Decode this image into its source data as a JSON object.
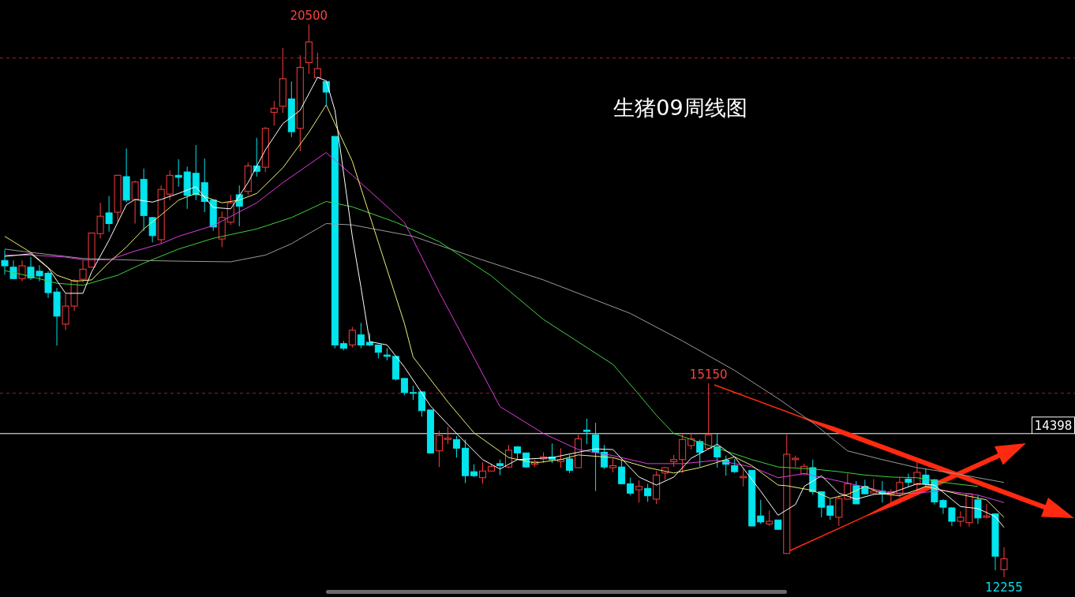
{
  "chart_data": {
    "type": "candlestick",
    "title": "生猪09周线图",
    "categories": [
      null,
      null,
      null,
      null,
      null,
      null,
      null,
      null,
      null,
      null,
      null,
      null,
      null,
      null,
      null,
      null,
      null,
      null,
      null,
      null,
      null,
      null,
      null,
      null,
      null,
      null,
      null,
      null,
      null,
      null,
      null,
      null,
      null,
      null,
      null,
      null,
      null,
      null,
      null,
      null,
      null,
      null,
      null,
      null,
      null,
      null,
      null,
      null,
      null,
      null,
      null,
      null,
      null,
      null,
      null,
      null,
      null,
      null,
      null,
      null,
      null,
      null,
      null,
      null,
      null,
      null,
      null,
      null,
      null,
      null,
      null,
      null,
      null,
      null,
      null,
      null,
      null,
      null,
      null,
      null,
      null,
      null,
      null,
      null,
      null,
      null,
      null,
      null,
      null,
      null,
      null,
      null,
      null,
      null,
      null,
      null,
      null,
      null,
      null,
      null,
      null,
      null,
      null,
      null,
      null,
      null,
      null,
      null,
      null,
      null,
      null,
      null,
      null,
      null,
      null,
      null
    ],
    "ohlc": [
      [
        16980,
        17140,
        16770,
        16900
      ],
      [
        16880,
        16980,
        16700,
        16710
      ],
      [
        16710,
        16980,
        16670,
        16900
      ],
      [
        16880,
        17030,
        16690,
        16720
      ],
      [
        16820,
        16910,
        16670,
        16750
      ],
      [
        16790,
        16820,
        16420,
        16500
      ],
      [
        16510,
        16570,
        15710,
        16150
      ],
      [
        16030,
        16480,
        15940,
        16300
      ],
      [
        16300,
        16700,
        16230,
        16680
      ],
      [
        16700,
        16980,
        16650,
        16850
      ],
      [
        16880,
        17390,
        16880,
        17390
      ],
      [
        17380,
        17840,
        17310,
        17640
      ],
      [
        17690,
        17940,
        17410,
        17530
      ],
      [
        17700,
        18260,
        17550,
        18250
      ],
      [
        18230,
        18650,
        17850,
        17880
      ],
      [
        17890,
        18170,
        17530,
        18150
      ],
      [
        18190,
        18350,
        17420,
        17650
      ],
      [
        17620,
        17630,
        17250,
        17350
      ],
      [
        17290,
        18100,
        17230,
        18040
      ],
      [
        17970,
        18320,
        17880,
        18250
      ],
      [
        18250,
        18490,
        18080,
        18220
      ],
      [
        18300,
        18380,
        17750,
        17950
      ],
      [
        18280,
        18700,
        17880,
        17960
      ],
      [
        18140,
        18500,
        17700,
        17860
      ],
      [
        17880,
        17880,
        17420,
        17480
      ],
      [
        17300,
        17710,
        17180,
        17620
      ],
      [
        17550,
        17960,
        17510,
        17840
      ],
      [
        17960,
        18100,
        17490,
        17790
      ],
      [
        18010,
        18440,
        17960,
        18390
      ],
      [
        18390,
        18810,
        18230,
        18310
      ],
      [
        18370,
        18970,
        18300,
        18950
      ],
      [
        19190,
        19360,
        18990,
        19250
      ],
      [
        19280,
        20150,
        19180,
        19690
      ],
      [
        19390,
        19650,
        18820,
        18900
      ],
      [
        18950,
        20040,
        18610,
        19860
      ],
      [
        19930,
        20500,
        19760,
        20240
      ],
      [
        19710,
        20080,
        19700,
        19840
      ],
      [
        19650,
        19650,
        19300,
        19490
      ],
      [
        18830,
        18830,
        15670,
        15720
      ],
      [
        15740,
        15780,
        15640,
        15670
      ],
      [
        15720,
        15990,
        15680,
        15940
      ],
      [
        15870,
        16050,
        15670,
        15720
      ],
      [
        15760,
        15900,
        15700,
        15720
      ],
      [
        15720,
        15720,
        15520,
        15610
      ],
      [
        15570,
        15670,
        15490,
        15550
      ],
      [
        15550,
        15550,
        15190,
        15210
      ],
      [
        15220,
        15230,
        14970,
        15010
      ],
      [
        15010,
        15110,
        14900,
        15000
      ],
      [
        15020,
        15020,
        14650,
        14740
      ],
      [
        14750,
        14750,
        14100,
        14110
      ],
      [
        14140,
        14440,
        13900,
        14370
      ],
      [
        14310,
        14500,
        14240,
        14330
      ],
      [
        14310,
        14360,
        14040,
        14180
      ],
      [
        14180,
        14310,
        13660,
        13770
      ],
      [
        13830,
        13940,
        13750,
        13770
      ],
      [
        13740,
        13970,
        13650,
        13840
      ],
      [
        13840,
        13940,
        13840,
        13910
      ],
      [
        13950,
        14010,
        13780,
        13920
      ],
      [
        13900,
        14230,
        13880,
        14150
      ],
      [
        14200,
        14210,
        14020,
        14110
      ],
      [
        14110,
        14110,
        13890,
        13900
      ],
      [
        13940,
        14010,
        13900,
        13980
      ],
      [
        14020,
        14120,
        13960,
        14050
      ],
      [
        14050,
        14250,
        13960,
        14010
      ],
      [
        13980,
        14180,
        13890,
        14010
      ],
      [
        14020,
        14080,
        13810,
        13850
      ],
      [
        13890,
        14380,
        13890,
        14320
      ],
      [
        14450,
        14620,
        14240,
        14430
      ],
      [
        14380,
        14560,
        13540,
        14120
      ],
      [
        14120,
        14230,
        13870,
        13900
      ],
      [
        13890,
        14030,
        13820,
        13920
      ],
      [
        13900,
        14010,
        13640,
        13650
      ],
      [
        13650,
        13740,
        13480,
        13510
      ],
      [
        13560,
        13700,
        13370,
        13610
      ],
      [
        13580,
        13650,
        13380,
        13470
      ],
      [
        13420,
        13840,
        13350,
        13780
      ],
      [
        13810,
        13900,
        13710,
        13890
      ],
      [
        13980,
        14080,
        13900,
        14010
      ],
      [
        14010,
        14400,
        13810,
        14310
      ],
      [
        14220,
        14410,
        14160,
        14320
      ],
      [
        14280,
        14310,
        13900,
        14120
      ],
      [
        14180,
        15150,
        14160,
        14380
      ],
      [
        14200,
        14400,
        13890,
        14050
      ],
      [
        14000,
        14070,
        13770,
        13940
      ],
      [
        13920,
        14020,
        13810,
        13830
      ],
      [
        13740,
        13870,
        13610,
        13760
      ],
      [
        13850,
        13850,
        13020,
        13020
      ],
      [
        13170,
        13410,
        13050,
        13080
      ],
      [
        13050,
        13250,
        13020,
        13090
      ],
      [
        13110,
        13110,
        12970,
        12970
      ],
      [
        12610,
        14380,
        12610,
        14090
      ],
      [
        14010,
        14070,
        13900,
        14030
      ],
      [
        13800,
        13950,
        13780,
        13910
      ],
      [
        13890,
        14010,
        13490,
        13530
      ],
      [
        13530,
        13530,
        13150,
        13300
      ],
      [
        13320,
        13420,
        13110,
        13180
      ],
      [
        13150,
        13480,
        13020,
        13430
      ],
      [
        13420,
        13800,
        13420,
        13650
      ],
      [
        13620,
        13690,
        13350,
        13350
      ],
      [
        13610,
        13710,
        13500,
        13500
      ],
      [
        13510,
        13720,
        13490,
        13540
      ],
      [
        13540,
        13690,
        13370,
        13500
      ],
      [
        13490,
        13570,
        13370,
        13530
      ],
      [
        13500,
        13750,
        13450,
        13670
      ],
      [
        13720,
        13800,
        13610,
        13670
      ],
      [
        13640,
        13970,
        13530,
        13820
      ],
      [
        13780,
        13880,
        13590,
        13650
      ],
      [
        13710,
        13720,
        13340,
        13380
      ],
      [
        13400,
        13420,
        13200,
        13300
      ],
      [
        13290,
        13300,
        13020,
        13090
      ],
      [
        13090,
        13240,
        13010,
        13150
      ],
      [
        13070,
        13510,
        13010,
        13500
      ],
      [
        13410,
        13480,
        13050,
        13140
      ],
      [
        13150,
        13350,
        13130,
        13170
      ],
      [
        13200,
        13200,
        12360,
        12570
      ],
      [
        12370,
        12700,
        12255,
        12530
      ]
    ],
    "colors": [
      "#00e5ee",
      "#00e5ee",
      "#ff3c3c",
      "#00e5ee",
      "#00e5ee",
      "#00e5ee",
      "#00e5ee",
      "#ff3c3c",
      "#ff3c3c",
      "#ff3c3c",
      "#ff3c3c",
      "#ff3c3c",
      "#00e5ee",
      "#ff3c3c",
      "#00e5ee",
      "#ff3c3c",
      "#00e5ee",
      "#00e5ee",
      "#ff3c3c",
      "#ff3c3c",
      "#00e5ee",
      "#00e5ee",
      "#00e5ee",
      "#00e5ee",
      "#00e5ee",
      "#ff3c3c",
      "#ff3c3c",
      "#00e5ee",
      "#ff3c3c",
      "#00e5ee",
      "#ff3c3c",
      "#ff3c3c",
      "#ff3c3c",
      "#00e5ee",
      "#ff3c3c",
      "#ff3c3c",
      "#ff3c3c",
      "#00e5ee",
      "#00e5ee",
      "#00e5ee",
      "#ff3c3c",
      "#00e5ee",
      "#00e5ee",
      "#00e5ee",
      "#00e5ee",
      "#00e5ee",
      "#00e5ee",
      "#00e5ee",
      "#00e5ee",
      "#00e5ee",
      "#ff3c3c",
      "#ff3c3c",
      "#00e5ee",
      "#00e5ee",
      "#00e5ee",
      "#ff3c3c",
      "#ff3c3c",
      "#00e5ee",
      "#ff3c3c",
      "#00e5ee",
      "#00e5ee",
      "#ff3c3c",
      "#ff3c3c",
      "#00e5ee",
      "#ff3c3c",
      "#00e5ee",
      "#ff3c3c",
      "#00e5ee",
      "#00e5ee",
      "#00e5ee",
      "#ff3c3c",
      "#00e5ee",
      "#00e5ee",
      "#ff3c3c",
      "#00e5ee",
      "#ff3c3c",
      "#ff3c3c",
      "#ff3c3c",
      "#ff3c3c",
      "#ff3c3c",
      "#00e5ee",
      "#ff3c3c",
      "#00e5ee",
      "#00e5ee",
      "#00e5ee",
      "#ff3c3c",
      "#00e5ee",
      "#00e5ee",
      "#ff3c3c",
      "#00e5ee",
      "#ff3c3c",
      "#ff3c3c",
      "#ff3c3c",
      "#00e5ee",
      "#00e5ee",
      "#00e5ee",
      "#ff3c3c",
      "#ff3c3c",
      "#00e5ee",
      "#00e5ee",
      "#ff3c3c",
      "#00e5ee",
      "#ff3c3c",
      "#ff3c3c",
      "#00e5ee",
      "#ff3c3c",
      "#00e5ee",
      "#00e5ee",
      "#00e5ee",
      "#00e5ee",
      "#ff3c3c",
      "#ff3c3c",
      "#00e5ee",
      "#ff3c3c",
      "#00e5ee",
      "#ff3c3c"
    ],
    "series": [
      {
        "type": "line",
        "color": "#9a9a9a",
        "values": [
          17150,
          null,
          null,
          17100,
          null,
          null,
          null,
          null,
          null,
          17010,
          null,
          null,
          null,
          null,
          null,
          null,
          16980,
          null,
          null,
          null,
          16970,
          null,
          null,
          null,
          null,
          null,
          16960,
          null,
          null,
          null,
          17060,
          null,
          null,
          17230,
          null,
          null,
          null,
          17530,
          null,
          null,
          17510,
          null,
          null,
          null,
          null,
          null,
          null,
          17340,
          null,
          null,
          null,
          null,
          null,
          null,
          17030,
          null,
          null,
          null,
          null,
          null,
          null,
          null,
          16690,
          null,
          null,
          null,
          null,
          16440,
          null,
          null,
          null,
          null,
          16190,
          null,
          null,
          null,
          null,
          null,
          15780,
          null,
          null,
          null,
          null,
          null,
          15340,
          null,
          null,
          null,
          null,
          14920,
          null,
          null,
          null,
          14560,
          null,
          null,
          null,
          14140,
          null,
          null,
          null,
          14010,
          null,
          null,
          null,
          13890,
          null,
          null,
          null,
          13810,
          null,
          null,
          null,
          null,
          null,
          13670
        ]
      },
      {
        "type": "line",
        "color": "#3fd23f",
        "values": [
          16830,
          null,
          null,
          16740,
          null,
          null,
          16640,
          null,
          null,
          16610,
          null,
          null,
          null,
          16760,
          null,
          null,
          16940,
          null,
          null,
          null,
          17150,
          null,
          null,
          null,
          17310,
          null,
          null,
          null,
          null,
          17450,
          null,
          null,
          null,
          17620,
          null,
          null,
          null,
          17860,
          null,
          null,
          17780,
          null,
          null,
          null,
          null,
          17550,
          null,
          null,
          null,
          null,
          17260,
          null,
          null,
          null,
          null,
          null,
          16750,
          null,
          null,
          null,
          null,
          null,
          16100,
          null,
          null,
          null,
          null,
          null,
          null,
          null,
          15430,
          null,
          null,
          14980,
          null,
          14670,
          null,
          14400,
          null,
          14310,
          null,
          null,
          14180,
          null,
          null,
          null,
          14010,
          null,
          null,
          13900,
          null,
          null,
          null,
          13870,
          null,
          null,
          13830,
          null,
          null,
          13780,
          null,
          null,
          13750,
          null,
          null,
          13740,
          null,
          null,
          13670,
          null,
          null,
          null,
          13610,
          null,
          null,
          null
        ]
      },
      {
        "type": "line",
        "color": "#e03ce0",
        "values": [
          17060,
          null,
          null,
          17060,
          null,
          null,
          null,
          17030,
          null,
          16990,
          null,
          null,
          16990,
          null,
          null,
          17120,
          null,
          null,
          17230,
          null,
          17340,
          null,
          null,
          null,
          17500,
          null,
          null,
          null,
          null,
          17840,
          null,
          null,
          18140,
          null,
          null,
          null,
          null,
          18590,
          null,
          null,
          18250,
          null,
          null,
          null,
          null,
          null,
          17550,
          null,
          null,
          null,
          16510,
          null,
          null,
          null,
          null,
          null,
          null,
          14800,
          null,
          null,
          null,
          null,
          14400,
          null,
          null,
          null,
          14160,
          null,
          null,
          null,
          14070,
          null,
          null,
          null,
          13950,
          null,
          null,
          null,
          13950,
          null,
          null,
          null,
          14000,
          null,
          null,
          null,
          13900,
          null,
          null,
          13740,
          null,
          null,
          13800,
          null,
          null,
          null,
          13690,
          null,
          null,
          13600,
          null,
          null,
          13510,
          null,
          null,
          13510,
          null,
          null,
          13550,
          null,
          null,
          null,
          13480,
          null,
          null,
          13370
        ]
      },
      {
        "type": "line",
        "color": "#eeee78",
        "values": [
          17340,
          null,
          null,
          17100,
          null,
          null,
          16760,
          null,
          16670,
          null,
          16690,
          null,
          16950,
          null,
          17180,
          null,
          17450,
          null,
          17660,
          null,
          17880,
          null,
          17980,
          null,
          null,
          17840,
          null,
          17880,
          null,
          17980,
          null,
          null,
          18360,
          null,
          null,
          18890,
          null,
          19300,
          null,
          null,
          18460,
          null,
          null,
          17250,
          null,
          null,
          16040,
          15540,
          null,
          null,
          null,
          14870,
          null,
          null,
          14410,
          null,
          null,
          null,
          14040,
          null,
          null,
          13960,
          null,
          null,
          14010,
          null,
          14080,
          null,
          null,
          null,
          14040,
          null,
          null,
          null,
          13890,
          null,
          null,
          13810,
          null,
          null,
          13890,
          null,
          null,
          null,
          14050,
          null,
          13920,
          null,
          null,
          13630,
          13620,
          null,
          null,
          13550,
          null,
          13430,
          null,
          13490,
          null,
          13610,
          null,
          13500,
          null,
          13470,
          null,
          13560,
          13610,
          null,
          null,
          null,
          13490,
          null,
          null,
          13410,
          null,
          13150
        ]
      },
      {
        "type": "line",
        "color": "#ffffff",
        "values": [
          17040,
          null,
          null,
          17080,
          null,
          16870,
          null,
          16490,
          null,
          16490,
          16810,
          null,
          17280,
          null,
          17810,
          17890,
          null,
          17850,
          17890,
          null,
          17980,
          null,
          18080,
          null,
          17770,
          null,
          17750,
          null,
          18140,
          null,
          18630,
          null,
          19020,
          null,
          19220,
          null,
          19710,
          19660,
          19220,
          null,
          17340,
          16580,
          15770,
          null,
          15720,
          null,
          15390,
          null,
          null,
          14810,
          null,
          null,
          14400,
          null,
          null,
          14010,
          null,
          13870,
          null,
          14010,
          null,
          null,
          null,
          14040,
          null,
          null,
          14120,
          null,
          14170,
          null,
          14160,
          null,
          null,
          13750,
          null,
          13630,
          null,
          13750,
          null,
          14030,
          null,
          null,
          14240,
          null,
          14050,
          null,
          null,
          13540,
          null,
          13180,
          null,
          13340,
          13610,
          null,
          13770,
          null,
          13510,
          null,
          13420,
          null,
          13490,
          null,
          13510,
          null,
          null,
          13650,
          null,
          13630,
          null,
          null,
          13310,
          null,
          13280,
          null,
          13160,
          13000
        ]
      }
    ],
    "ref_lines": [
      {
        "axis": "y",
        "value": 14398,
        "label": "14398",
        "color": "#ffffff",
        "line_style": "solid"
      },
      {
        "axis": "y",
        "value": 20000,
        "color": "#a02020",
        "line_style": "dashed"
      },
      {
        "axis": "y",
        "value": 15000,
        "color": "#a02020",
        "line_style": "dashed"
      }
    ],
    "annotations": [
      {
        "text": "20500",
        "y": 20500
      },
      {
        "text": "15150",
        "y": 15150
      },
      {
        "text": "12255",
        "y": 12255
      }
    ]
  }
}
